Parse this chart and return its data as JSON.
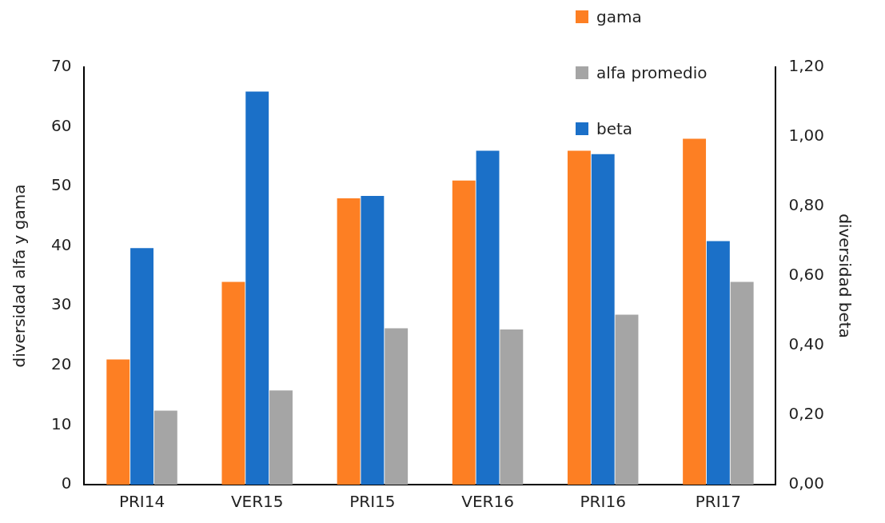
{
  "chart_data": {
    "type": "bar",
    "ylabel": "diversidad alfa y gama",
    "y2label": "diversidad beta",
    "categories": [
      "PRI14",
      "VER15",
      "PRI15",
      "VER16",
      "PRI16",
      "PRI17"
    ],
    "series": [
      {
        "name": "gama",
        "color": "#fd7f23",
        "values": [
          21,
          34,
          48,
          51,
          56,
          58
        ]
      },
      {
        "name": "beta",
        "color": "#1b70c8",
        "axis": "y2",
        "values": [
          0.68,
          1.13,
          0.83,
          0.96,
          0.95,
          0.7
        ]
      },
      {
        "name": "alfa promedio",
        "color": "#a5a5a5",
        "values": [
          12.4,
          15.8,
          26.2,
          26,
          28.5,
          34
        ]
      }
    ],
    "ylim": [
      0,
      70
    ],
    "yticks": [
      0,
      10,
      20,
      30,
      40,
      50,
      60,
      70
    ],
    "y2lim": [
      0,
      1.2
    ],
    "y2ticks": [
      {
        "value": 0,
        "label": "0,00"
      },
      {
        "value": 0.2,
        "label": "0,20"
      },
      {
        "value": 0.4,
        "label": "0,40"
      },
      {
        "value": 0.6,
        "label": "0,60"
      },
      {
        "value": 0.8,
        "label": "0,80"
      },
      {
        "value": 1,
        "label": "1,00"
      },
      {
        "value": 1.2,
        "label": "1,20"
      }
    ],
    "grid": false,
    "legend": "top right"
  }
}
